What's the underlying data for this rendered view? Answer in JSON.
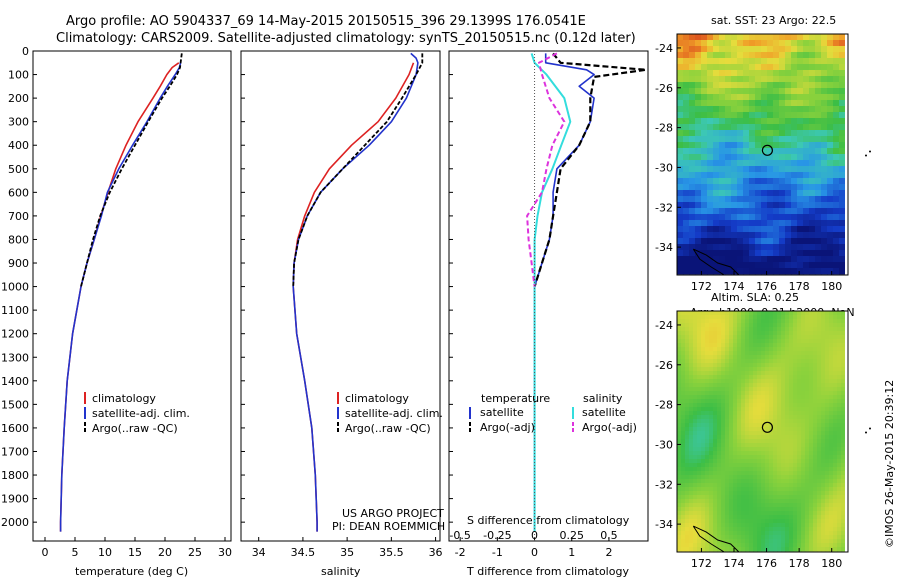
{
  "header": {
    "line1": "Argo profile: AO 5904337_69 14-May-2015 20150515_396 29.1399S 176.0541E",
    "line2": "Climatology: CARS2009. Satellite-adjusted climatology: synTS_20150515.nc (0.12d later)"
  },
  "colors": {
    "climatology": "#dd2222",
    "satellite": "#2233cc",
    "argo": "#000000",
    "salinity_satellite": "#33dddd",
    "salinity_argo": "#dd33dd"
  },
  "legend": {
    "climatology": "climatology",
    "satellite_adj": "satellite-adj. clim.",
    "argo_raw": "Argo(..raw -QC)",
    "diff_temperature": "temperature",
    "diff_salinity": "salinity",
    "satellite": "satellite",
    "argo_adj": "Argo(-adj)"
  },
  "project": {
    "line1": "US ARGO PROJECT",
    "line2": "PI: DEAN ROEMMICH"
  },
  "maps": {
    "sst_title": "sat. SST: 23 Argo: 22.5",
    "sla_title1": "Altim. SLA: 0.25",
    "sla_title2": "Argo h1000: 0.21 h2000: NaN",
    "lat_ticks": [
      "-24",
      "-26",
      "-28",
      "-30",
      "-32",
      "-34"
    ],
    "lon_ticks": [
      "172",
      "174",
      "176",
      "178",
      "180"
    ],
    "float_lon": 176.05,
    "float_lat": -29.14
  },
  "credit": "©IMOS 26-May-2015 20:39:12",
  "chart_data": [
    {
      "type": "line",
      "panel": "temperature",
      "xlabel": "temperature (deg C)",
      "ylabel": "",
      "xlim": [
        -2,
        31
      ],
      "ylim": [
        2080,
        0
      ],
      "xticks": [
        "0",
        "5",
        "10",
        "15",
        "20",
        "25",
        "30"
      ],
      "yticks": [
        "0",
        "100",
        "200",
        "300",
        "400",
        "500",
        "600",
        "700",
        "800",
        "900",
        "1000",
        "1100",
        "1200",
        "1300",
        "1400",
        "1500",
        "1600",
        "1700",
        "1800",
        "1900",
        "2000"
      ],
      "series": [
        {
          "name": "climatology",
          "depth": [
            50,
            70,
            100,
            150,
            200,
            300,
            400,
            500,
            600,
            700,
            800,
            900,
            1000,
            1200,
            1400,
            1600,
            1800,
            2000,
            2040
          ],
          "values": [
            22.3,
            21.2,
            20.3,
            19.2,
            18.0,
            15.5,
            13.5,
            11.8,
            10.5,
            9.3,
            8.2,
            7.0,
            6.0,
            4.6,
            3.7,
            3.2,
            2.8,
            2.6,
            2.6
          ]
        },
        {
          "name": "satellite-adj. clim.",
          "depth": [
            50,
            70,
            100,
            150,
            200,
            300,
            400,
            500,
            600,
            700,
            800,
            900,
            1000,
            1200,
            1400,
            1600,
            1800,
            2000,
            2040
          ],
          "values": [
            22.6,
            22.4,
            21.7,
            20.4,
            19.2,
            17.0,
            14.6,
            12.3,
            10.4,
            9.4,
            8.2,
            7.0,
            6.0,
            4.6,
            3.7,
            3.2,
            2.8,
            2.6,
            2.6
          ]
        },
        {
          "name": "Argo(..raw -QC)",
          "depth": [
            10,
            50,
            70,
            100,
            150,
            200,
            300,
            400,
            500,
            600,
            700,
            800,
            900,
            1000
          ],
          "values": [
            22.8,
            22.6,
            22.5,
            22.0,
            20.8,
            19.5,
            17.2,
            15.0,
            12.8,
            10.8,
            9.2,
            8.0,
            7.0,
            6.0
          ]
        }
      ]
    },
    {
      "type": "line",
      "panel": "salinity",
      "xlabel": "salinity",
      "ylabel": "",
      "xlim": [
        33.8,
        36.05
      ],
      "ylim": [
        2080,
        0
      ],
      "xticks": [
        "34",
        "34.5",
        "35",
        "35.5",
        "36"
      ],
      "series": [
        {
          "name": "climatology",
          "depth": [
            50,
            100,
            200,
            300,
            400,
            500,
            600,
            700,
            800,
            900,
            1000,
            1200,
            1400,
            1600,
            1800,
            2000,
            2040
          ],
          "values": [
            35.75,
            35.7,
            35.55,
            35.35,
            35.05,
            34.8,
            34.63,
            34.52,
            34.44,
            34.4,
            34.39,
            34.43,
            34.52,
            34.6,
            34.64,
            34.66,
            34.66
          ]
        },
        {
          "name": "satellite-adj. clim.",
          "depth": [
            10,
            30,
            50,
            100,
            200,
            300,
            400,
            500,
            600,
            700,
            800,
            900,
            1000,
            1200,
            1400,
            1600,
            1800,
            2000,
            2040
          ],
          "values": [
            35.72,
            35.78,
            35.8,
            35.78,
            35.67,
            35.5,
            35.25,
            34.95,
            34.7,
            34.55,
            34.45,
            34.4,
            34.39,
            34.43,
            34.52,
            34.6,
            34.64,
            34.66,
            34.66
          ]
        },
        {
          "name": "Argo(..raw -QC)",
          "depth": [
            10,
            50,
            100,
            200,
            300,
            400,
            500,
            600,
            700,
            800,
            900,
            1000
          ],
          "values": [
            35.85,
            35.85,
            35.78,
            35.62,
            35.45,
            35.2,
            34.95,
            34.7,
            34.55,
            34.45,
            34.4,
            34.39
          ]
        }
      ]
    },
    {
      "type": "line",
      "panel": "difference",
      "xlabel": "T difference from climatology",
      "xlabel_top": "S difference from climatology",
      "xlim": [
        -2.3,
        3.05
      ],
      "ylim": [
        2080,
        0
      ],
      "xticks": [
        "-2",
        "-1",
        "0",
        "1",
        "2"
      ],
      "sticks": [
        "-0.5",
        "-0.25",
        "0",
        "0.25",
        "0.5"
      ],
      "series": [
        {
          "name": "temperature satellite",
          "depth": [
            10,
            50,
            80,
            100,
            150,
            200,
            300,
            400,
            500,
            600,
            700,
            800,
            900,
            1000,
            1200,
            1400,
            1600,
            1800,
            2000,
            2040
          ],
          "values": [
            0.3,
            0.3,
            1.4,
            1.6,
            1.2,
            1.6,
            1.5,
            1.2,
            0.6,
            0.5,
            0.5,
            0.4,
            0.2,
            0.0,
            0.0,
            0.0,
            0.0,
            0.0,
            0.0,
            0.0
          ]
        },
        {
          "name": "temperature Argo(-adj)",
          "depth": [
            10,
            50,
            80,
            110,
            200,
            300,
            400,
            500,
            600,
            700,
            800,
            900,
            1000
          ],
          "values": [
            0.5,
            0.7,
            3.0,
            1.6,
            1.5,
            1.5,
            1.2,
            0.7,
            0.6,
            0.5,
            0.4,
            0.2,
            0.0
          ]
        },
        {
          "name": "salinity satellite",
          "depth": [
            10,
            50,
            100,
            200,
            300,
            400,
            500,
            600,
            700,
            800,
            900,
            1000,
            1200,
            1400,
            1600,
            1800,
            2000,
            2040
          ],
          "values": [
            -0.02,
            0.0,
            0.08,
            0.2,
            0.24,
            0.18,
            0.12,
            0.05,
            0.02,
            0.0,
            0.0,
            0.0,
            0.0,
            0.0,
            0.0,
            0.0,
            0.0,
            0.0
          ]
        },
        {
          "name": "salinity Argo(-adj)",
          "depth": [
            10,
            50,
            100,
            200,
            300,
            400,
            500,
            600,
            700,
            800,
            900,
            1000
          ],
          "values": [
            0.15,
            0.03,
            0.05,
            0.1,
            0.2,
            0.12,
            0.08,
            0.05,
            -0.05,
            -0.04,
            -0.02,
            0.0
          ]
        }
      ]
    }
  ]
}
